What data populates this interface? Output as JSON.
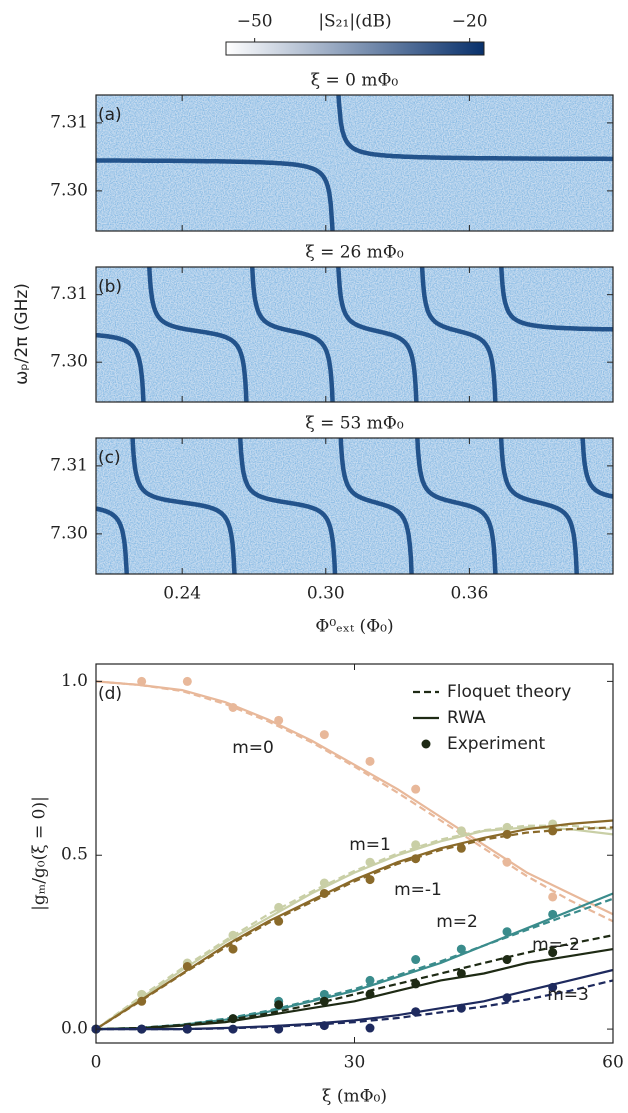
{
  "chart_data": [
    {
      "type": "colorbar",
      "title": "|S₂₁|(dB)",
      "clim": [
        -54,
        -18
      ],
      "ticks": [
        {
          "value": -50,
          "label": "−50"
        },
        {
          "value": -20,
          "label": "−20"
        }
      ],
      "colors": [
        "#ffffff",
        "#08306b"
      ]
    },
    {
      "type": "spectrum",
      "title": "ξ = 0 mΦ₀",
      "panel_label": "(a)",
      "xlim": [
        0.204,
        0.42
      ],
      "ylim": [
        7.2941,
        7.3141
      ],
      "xticks": [
        0.24,
        {
          "value": 0.3,
          "label": "0.30"
        },
        0.36
      ],
      "show_xtick_labels": false,
      "yticks": [
        {
          "value": 7.3,
          "label": "7.30"
        },
        7.31
      ],
      "resonance": 7.3046,
      "crossings": [
        0.304
      ]
    },
    {
      "type": "spectrum",
      "title": "ξ = 26 mΦ₀",
      "panel_label": "(b)",
      "ylabel": "ωₚ/2π (GHz)",
      "xlim": [
        0.204,
        0.42
      ],
      "ylim": [
        7.2941,
        7.3141
      ],
      "xticks": [
        0.24,
        {
          "value": 0.3,
          "label": "0.30"
        },
        0.36
      ],
      "show_xtick_labels": false,
      "yticks": [
        {
          "value": 7.3,
          "label": "7.30"
        },
        7.31
      ],
      "resonance": 7.3046,
      "crossings": [
        0.225,
        0.268,
        0.304,
        0.339,
        0.372
      ]
    },
    {
      "type": "spectrum",
      "title": "ξ = 53 mΦ₀",
      "panel_label": "(c)",
      "xlabel": "Φ⁰ₑₓₜ (Φ₀)",
      "xlim": [
        0.204,
        0.42
      ],
      "ylim": [
        7.2941,
        7.3141
      ],
      "xticks": [
        0.24,
        {
          "value": 0.3,
          "label": "0.30"
        },
        0.36
      ],
      "show_xtick_labels": true,
      "yticks": [
        {
          "value": 7.3,
          "label": "7.30"
        },
        7.31
      ],
      "resonance": 7.3046,
      "crossings": [
        0.218,
        0.263,
        0.305,
        0.337,
        0.372,
        0.406
      ]
    },
    {
      "type": "line",
      "panel_label": "(d)",
      "xlabel": "ξ (mΦ₀)",
      "ylabel": "|gₘ/g₀(ξ = 0)|",
      "xlim": [
        0,
        60
      ],
      "ylim": [
        -0.04,
        1.05
      ],
      "xticks": [
        0,
        30,
        60
      ],
      "yticks": [
        {
          "value": 0,
          "label": "0.0"
        },
        {
          "value": 0.5,
          "label": "0.5"
        },
        {
          "value": 1,
          "label": "1.0"
        }
      ],
      "legend": {
        "corner": "upper right",
        "labels": [
          "Floquet theory",
          "RWA",
          "Experiment"
        ],
        "color": "#1e2a14"
      },
      "x": [
        0,
        5,
        10,
        15,
        20,
        25,
        30,
        35,
        40,
        45,
        50,
        55,
        60
      ],
      "x_experiment": [
        0,
        5.3,
        10.6,
        15.9,
        21.2,
        26.5,
        31.8,
        37.1,
        42.4,
        47.7,
        53
      ],
      "series": [
        {
          "name": "m=0",
          "color": "#e8b89a",
          "rwa": [
            1.0,
            0.99,
            0.975,
            0.94,
            0.89,
            0.83,
            0.76,
            0.69,
            0.61,
            0.53,
            0.45,
            0.39,
            0.33
          ],
          "floquet": [
            1.0,
            0.99,
            0.972,
            0.935,
            0.885,
            0.825,
            0.755,
            0.68,
            0.6,
            0.52,
            0.44,
            0.37,
            0.31
          ],
          "experiment": [
            null,
            1.0,
            1.0,
            0.925,
            0.888,
            0.847,
            0.77,
            0.69,
            0.57,
            0.48,
            0.38
          ]
        },
        {
          "name": "m=1",
          "color": "#c9cfa6",
          "rwa": [
            0,
            0.085,
            0.17,
            0.25,
            0.32,
            0.39,
            0.45,
            0.5,
            0.54,
            0.57,
            0.58,
            0.575,
            0.56
          ],
          "floquet": [
            0,
            0.09,
            0.175,
            0.255,
            0.33,
            0.395,
            0.455,
            0.505,
            0.545,
            0.572,
            0.585,
            0.585,
            0.575
          ],
          "experiment": [
            0,
            0.1,
            0.19,
            0.27,
            0.35,
            0.42,
            0.48,
            0.53,
            0.57,
            0.58,
            0.59
          ]
        },
        {
          "name": "m=-1",
          "color": "#8a6a2a",
          "rwa": [
            0,
            0.08,
            0.16,
            0.24,
            0.31,
            0.37,
            0.43,
            0.48,
            0.52,
            0.55,
            0.575,
            0.59,
            0.6
          ],
          "floquet": [
            0,
            0.078,
            0.158,
            0.235,
            0.305,
            0.365,
            0.425,
            0.475,
            0.515,
            0.545,
            0.565,
            0.575,
            0.58
          ],
          "experiment": [
            0,
            0.08,
            0.18,
            0.23,
            0.31,
            0.39,
            0.43,
            0.49,
            0.52,
            0.56,
            0.57
          ]
        },
        {
          "name": "m=2",
          "color": "#3a8c8c",
          "rwa": [
            0,
            0.003,
            0.012,
            0.027,
            0.05,
            0.08,
            0.11,
            0.15,
            0.19,
            0.24,
            0.29,
            0.34,
            0.39
          ],
          "floquet": [
            0,
            0.003,
            0.013,
            0.03,
            0.053,
            0.083,
            0.115,
            0.155,
            0.195,
            0.24,
            0.285,
            0.33,
            0.375
          ],
          "experiment": [
            0,
            0,
            0,
            0.03,
            0.08,
            0.1,
            0.14,
            0.2,
            0.23,
            0.28,
            0.33
          ]
        },
        {
          "name": "m=-2",
          "color": "#1e2a14",
          "rwa": [
            0,
            0.002,
            0.01,
            0.02,
            0.04,
            0.06,
            0.08,
            0.11,
            0.14,
            0.16,
            0.19,
            0.21,
            0.23
          ],
          "floquet": [
            0,
            0.003,
            0.012,
            0.025,
            0.045,
            0.07,
            0.1,
            0.13,
            0.16,
            0.19,
            0.22,
            0.245,
            0.27
          ],
          "experiment": [
            0,
            0,
            0,
            0.03,
            0.07,
            0.08,
            0.1,
            0.13,
            0.16,
            0.2,
            0.22
          ]
        },
        {
          "name": "m=3",
          "color": "#1e2a5e",
          "rwa": [
            0,
            0,
            0,
            0.003,
            0.008,
            0.015,
            0.025,
            0.04,
            0.06,
            0.08,
            0.11,
            0.14,
            0.17
          ],
          "floquet": [
            0,
            0,
            0,
            0.002,
            0.006,
            0.012,
            0.02,
            0.032,
            0.048,
            0.065,
            0.085,
            0.11,
            0.14
          ],
          "experiment": [
            0,
            0,
            0,
            0,
            0,
            0.01,
            0.003,
            0.05,
            0.06,
            0.09,
            0.12
          ]
        }
      ]
    }
  ]
}
